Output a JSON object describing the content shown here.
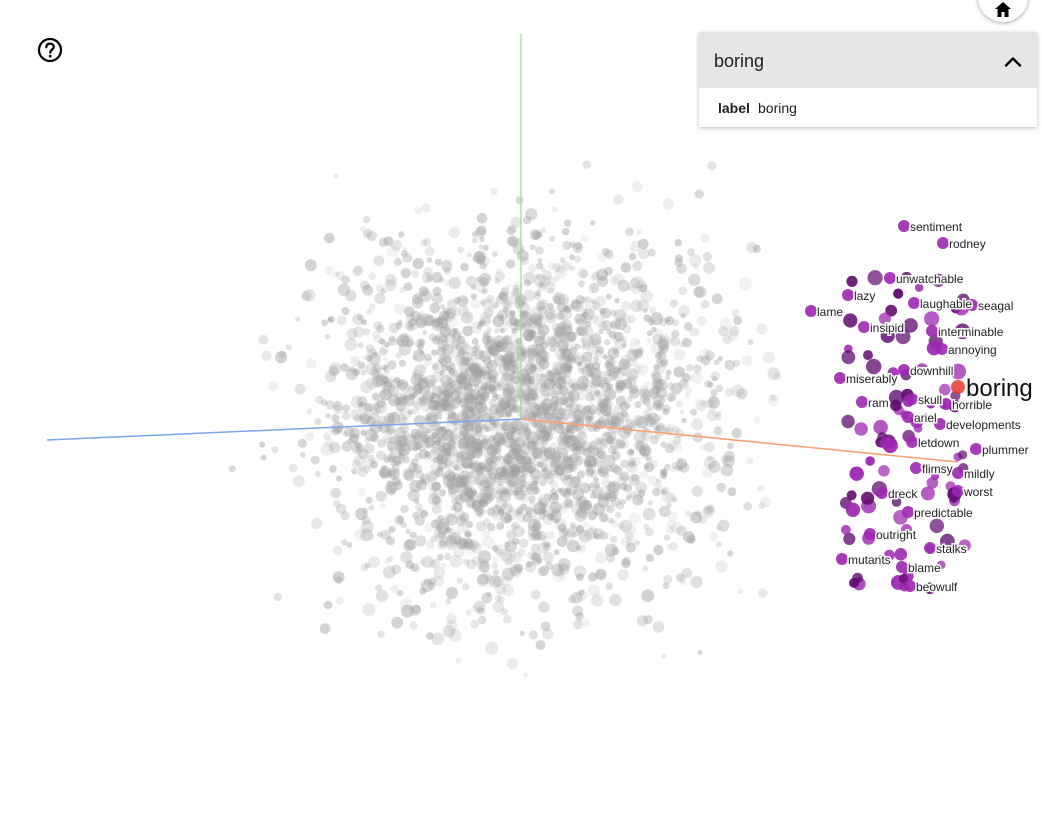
{
  "card": {
    "title": "boring",
    "metadata": [
      {
        "key": "label",
        "value": "boring"
      }
    ]
  },
  "projection": {
    "selected": {
      "label": "boring",
      "color": "#e53935"
    },
    "neighbors": [
      {
        "label": "sentiment"
      },
      {
        "label": "rodney"
      },
      {
        "label": "unwatchable"
      },
      {
        "label": "lazy"
      },
      {
        "label": "laughable"
      },
      {
        "label": "seagal"
      },
      {
        "label": "lame"
      },
      {
        "label": "insipid"
      },
      {
        "label": "interminable"
      },
      {
        "label": "annoying"
      },
      {
        "label": "downhill"
      },
      {
        "label": "miserably"
      },
      {
        "label": "skull"
      },
      {
        "label": "ram"
      },
      {
        "label": "horrible"
      },
      {
        "label": "ariel"
      },
      {
        "label": "developments"
      },
      {
        "label": "letdown"
      },
      {
        "label": "plummer"
      },
      {
        "label": "flimsy"
      },
      {
        "label": "mildly"
      },
      {
        "label": "dreck"
      },
      {
        "label": "worst"
      },
      {
        "label": "predictable"
      },
      {
        "label": "outright"
      },
      {
        "label": "stalks"
      },
      {
        "label": "mutants"
      },
      {
        "label": "blame"
      },
      {
        "label": "beowulf"
      }
    ],
    "neighbor_color": "#9c27b0",
    "point_color": "#9e9e9e",
    "axis_colors": {
      "x": "#ff9e6e",
      "y": "#8bdf8b",
      "z": "#7aa6f0"
    }
  },
  "icons": {
    "help": "help-circle-icon",
    "home": "home-icon",
    "collapse": "chevron-up-icon"
  }
}
